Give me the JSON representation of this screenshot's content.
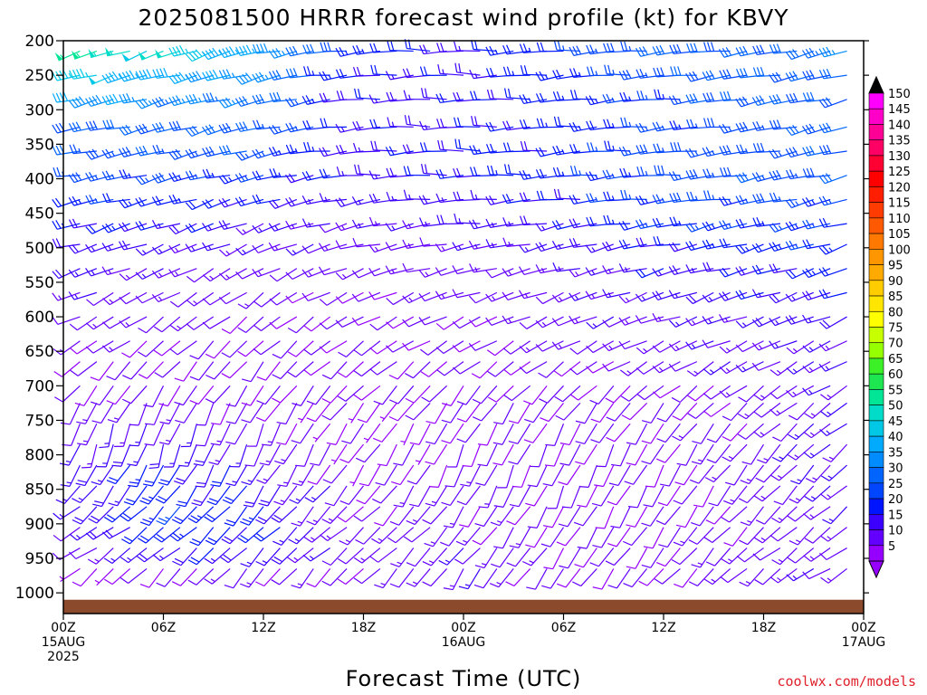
{
  "chart_data": {
    "type": "wind-barb",
    "title": "2025081500 HRRR forecast wind profile (kt) for KBVY",
    "xlabel": "Forecast Time (UTC)",
    "credit": "coolwx.com/models",
    "y_ticks": [
      "200",
      "250",
      "300",
      "350",
      "400",
      "450",
      "500",
      "550",
      "600",
      "650",
      "700",
      "750",
      "800",
      "850",
      "900",
      "950",
      "1000"
    ],
    "y_values": [
      200,
      250,
      300,
      350,
      400,
      450,
      500,
      550,
      600,
      650,
      700,
      750,
      800,
      850,
      900,
      950,
      1000
    ],
    "x_ticks": [
      {
        "hour": 0,
        "l1": "00Z",
        "l2": "15AUG",
        "l3": "2025"
      },
      {
        "hour": 6,
        "l1": "06Z",
        "l2": "",
        "l3": ""
      },
      {
        "hour": 12,
        "l1": "12Z",
        "l2": "",
        "l3": ""
      },
      {
        "hour": 18,
        "l1": "18Z",
        "l2": "",
        "l3": ""
      },
      {
        "hour": 24,
        "l1": "00Z",
        "l2": "16AUG",
        "l3": ""
      },
      {
        "hour": 30,
        "l1": "06Z",
        "l2": "",
        "l3": ""
      },
      {
        "hour": 36,
        "l1": "12Z",
        "l2": "",
        "l3": ""
      },
      {
        "hour": 42,
        "l1": "18Z",
        "l2": "",
        "l3": ""
      },
      {
        "hour": 48,
        "l1": "00Z",
        "l2": "17AUG",
        "l3": ""
      }
    ],
    "x_range_hours": [
      0,
      48
    ],
    "y_range_hpa": [
      200,
      1030
    ],
    "colorbar": {
      "labels": [
        "150",
        "145",
        "140",
        "135",
        "130",
        "125",
        "120",
        "115",
        "110",
        "105",
        "100",
        "95",
        "90",
        "85",
        "80",
        "75",
        "70",
        "65",
        "60",
        "55",
        "50",
        "45",
        "40",
        "35",
        "30",
        "25",
        "20",
        "15",
        "10",
        "5"
      ],
      "colors": [
        "#ff00ff",
        "#ff00c8",
        "#ff0096",
        "#ff0064",
        "#ff0032",
        "#ff0000",
        "#ff1e00",
        "#ff3c00",
        "#ff5a00",
        "#ff7800",
        "#ff9600",
        "#ffaa00",
        "#ffcc00",
        "#ffe600",
        "#ffff00",
        "#c8ff00",
        "#96ff00",
        "#3cf028",
        "#1ee650",
        "#00e696",
        "#00dcc8",
        "#00c8e6",
        "#00aaff",
        "#008cff",
        "#0064ff",
        "#0046ff",
        "#0014ff",
        "#3c00ff",
        "#6400ff",
        "#9600ff"
      ],
      "top_cap_color": "#000000",
      "bottom_cap_color": "#9600ff"
    },
    "surface_color": "#8b4a2b",
    "profiles": [
      {
        "hour": 0,
        "pressures": [
          215,
          250,
          285,
          325,
          360,
          395,
          430,
          465,
          495,
          530,
          565,
          600,
          635,
          665,
          700,
          725,
          755,
          785,
          815,
          845,
          875,
          905,
          935,
          965
        ],
        "speeds": [
          58,
          50,
          42,
          30,
          28,
          26,
          24,
          22,
          20,
          18,
          14,
          12,
          12,
          10,
          10,
          12,
          14,
          16,
          16,
          14,
          14,
          12,
          10,
          6
        ],
        "dirs": [
          250,
          255,
          255,
          260,
          260,
          260,
          255,
          255,
          255,
          250,
          250,
          245,
          240,
          230,
          220,
          210,
          200,
          200,
          210,
          220,
          230,
          240,
          240,
          230
        ]
      },
      {
        "hour": 6,
        "pressures": [
          215,
          250,
          285,
          325,
          360,
          395,
          430,
          465,
          495,
          530,
          565,
          600,
          635,
          665,
          700,
          725,
          755,
          785,
          815,
          845,
          875,
          905,
          935,
          965
        ],
        "speeds": [
          50,
          42,
          36,
          30,
          28,
          26,
          22,
          20,
          16,
          14,
          12,
          12,
          10,
          10,
          10,
          12,
          14,
          18,
          22,
          22,
          24,
          22,
          18,
          10
        ],
        "dirs": [
          250,
          255,
          255,
          255,
          255,
          255,
          255,
          250,
          250,
          245,
          240,
          235,
          230,
          220,
          215,
          205,
          200,
          200,
          210,
          215,
          225,
          230,
          230,
          225
        ]
      },
      {
        "hour": 12,
        "pressures": [
          215,
          250,
          285,
          325,
          360,
          395,
          430,
          465,
          495,
          530,
          565,
          600,
          635,
          665,
          700,
          725,
          755,
          785,
          815,
          845,
          875,
          905,
          935,
          965
        ],
        "speeds": [
          42,
          38,
          34,
          30,
          28,
          24,
          20,
          16,
          14,
          12,
          12,
          10,
          10,
          10,
          10,
          10,
          12,
          14,
          16,
          20,
          22,
          20,
          18,
          12
        ],
        "dirs": [
          255,
          255,
          255,
          255,
          255,
          255,
          250,
          250,
          245,
          240,
          235,
          230,
          225,
          220,
          215,
          210,
          205,
          205,
          210,
          215,
          220,
          225,
          225,
          220
        ]
      },
      {
        "hour": 18,
        "pressures": [
          215,
          250,
          285,
          325,
          360,
          395,
          430,
          465,
          495,
          530,
          565,
          600,
          635,
          665,
          700,
          725,
          755,
          785,
          815,
          845,
          875,
          905,
          935,
          965
        ],
        "speeds": [
          24,
          20,
          18,
          18,
          18,
          18,
          16,
          14,
          12,
          12,
          10,
          10,
          10,
          10,
          10,
          8,
          8,
          8,
          8,
          10,
          10,
          12,
          12,
          10
        ],
        "dirs": [
          265,
          265,
          265,
          265,
          265,
          265,
          260,
          255,
          255,
          250,
          245,
          240,
          235,
          230,
          225,
          220,
          215,
          215,
          215,
          220,
          225,
          230,
          230,
          225
        ]
      },
      {
        "hour": 24,
        "pressures": [
          215,
          250,
          285,
          325,
          360,
          395,
          430,
          465,
          495,
          530,
          565,
          600,
          635,
          665,
          700,
          725,
          755,
          785,
          815,
          845,
          875,
          905,
          935,
          965
        ],
        "speeds": [
          18,
          18,
          18,
          18,
          20,
          20,
          18,
          16,
          14,
          12,
          12,
          10,
          10,
          10,
          10,
          10,
          10,
          10,
          12,
          12,
          12,
          12,
          14,
          14
        ],
        "dirs": [
          270,
          270,
          270,
          270,
          270,
          270,
          265,
          265,
          260,
          255,
          250,
          245,
          240,
          230,
          220,
          215,
          210,
          205,
          205,
          210,
          215,
          220,
          220,
          215
        ]
      },
      {
        "hour": 30,
        "pressures": [
          215,
          250,
          285,
          325,
          360,
          395,
          430,
          465,
          495,
          530,
          565,
          600,
          635,
          665,
          700,
          725,
          755,
          785,
          815,
          845,
          875,
          905,
          935,
          965
        ],
        "speeds": [
          24,
          22,
          22,
          22,
          22,
          22,
          20,
          18,
          16,
          14,
          12,
          12,
          12,
          10,
          10,
          10,
          10,
          10,
          10,
          10,
          10,
          10,
          10,
          10
        ],
        "dirs": [
          265,
          265,
          265,
          265,
          265,
          265,
          265,
          260,
          255,
          255,
          250,
          245,
          240,
          235,
          225,
          215,
          210,
          205,
          205,
          205,
          210,
          210,
          215,
          215
        ]
      },
      {
        "hour": 36,
        "pressures": [
          215,
          250,
          285,
          325,
          360,
          395,
          430,
          465,
          495,
          530,
          565,
          600,
          635,
          665,
          700,
          725,
          755,
          785,
          815,
          845,
          875,
          905,
          935,
          965
        ],
        "speeds": [
          30,
          28,
          26,
          26,
          26,
          26,
          26,
          24,
          20,
          18,
          16,
          14,
          12,
          12,
          10,
          10,
          10,
          10,
          10,
          10,
          10,
          10,
          10,
          10
        ],
        "dirs": [
          265,
          265,
          265,
          265,
          265,
          265,
          265,
          260,
          260,
          255,
          250,
          250,
          245,
          240,
          230,
          220,
          215,
          210,
          210,
          210,
          210,
          215,
          215,
          220
        ]
      },
      {
        "hour": 42,
        "pressures": [
          215,
          250,
          285,
          325,
          360,
          395,
          430,
          465,
          495,
          530,
          565,
          600,
          635,
          665,
          700,
          725,
          755,
          785,
          815,
          845,
          875,
          905,
          935,
          965
        ],
        "speeds": [
          30,
          30,
          30,
          28,
          28,
          28,
          26,
          24,
          22,
          20,
          18,
          16,
          14,
          14,
          12,
          12,
          12,
          12,
          12,
          12,
          12,
          12,
          12,
          12
        ],
        "dirs": [
          260,
          260,
          260,
          260,
          260,
          260,
          260,
          255,
          255,
          255,
          250,
          250,
          245,
          240,
          235,
          230,
          225,
          220,
          220,
          220,
          225,
          225,
          230,
          230
        ]
      },
      {
        "hour": 48,
        "pressures": [
          215,
          250,
          285,
          325,
          360,
          395,
          430,
          465,
          495,
          530,
          565,
          600,
          635,
          665,
          700,
          725,
          755,
          785,
          815,
          845,
          875,
          905,
          935,
          965
        ],
        "speeds": [
          34,
          32,
          30,
          30,
          30,
          28,
          26,
          24,
          24,
          22,
          20,
          18,
          16,
          16,
          16,
          16,
          16,
          16,
          16,
          14,
          14,
          14,
          14,
          14
        ],
        "dirs": [
          255,
          255,
          255,
          255,
          255,
          255,
          255,
          255,
          250,
          250,
          250,
          245,
          245,
          240,
          240,
          235,
          235,
          230,
          230,
          230,
          230,
          235,
          235,
          240
        ]
      }
    ]
  }
}
